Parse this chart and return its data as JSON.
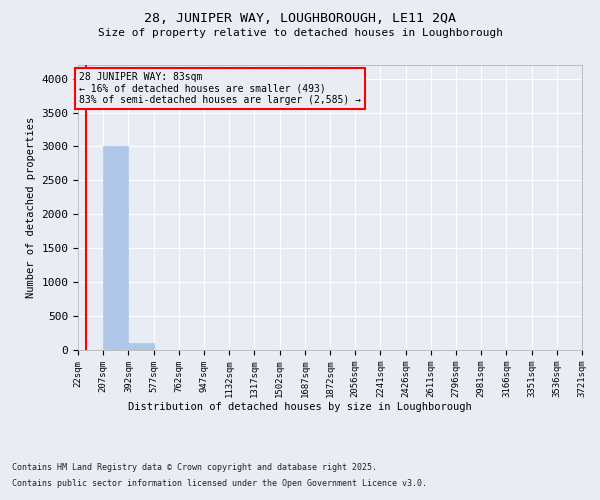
{
  "title1": "28, JUNIPER WAY, LOUGHBOROUGH, LE11 2QA",
  "title2": "Size of property relative to detached houses in Loughborough",
  "xlabel": "Distribution of detached houses by size in Loughborough",
  "ylabel": "Number of detached properties",
  "bar_color": "#aec6e8",
  "bar_edge_color": "#aec6e8",
  "background_color": "#e8edf5",
  "grid_color": "#ffffff",
  "annotation_line_color": "red",
  "annotation_box_color": "red",
  "annotation_text": "28 JUNIPER WAY: 83sqm\n← 16% of detached houses are smaller (493)\n83% of semi-detached houses are larger (2,585) →",
  "property_size": 83,
  "footnote1": "Contains HM Land Registry data © Crown copyright and database right 2025.",
  "footnote2": "Contains public sector information licensed under the Open Government Licence v3.0.",
  "bin_edges": [
    22,
    207,
    392,
    577,
    762,
    947,
    1132,
    1317,
    1502,
    1687,
    1872,
    2056,
    2241,
    2426,
    2611,
    2796,
    2981,
    3166,
    3351,
    3536,
    3721
  ],
  "bin_labels": [
    "22sqm",
    "207sqm",
    "392sqm",
    "577sqm",
    "762sqm",
    "947sqm",
    "1132sqm",
    "1317sqm",
    "1502sqm",
    "1687sqm",
    "1872sqm",
    "2056sqm",
    "2241sqm",
    "2426sqm",
    "2611sqm",
    "2796sqm",
    "2981sqm",
    "3166sqm",
    "3351sqm",
    "3536sqm",
    "3721sqm"
  ],
  "bar_heights": [
    0,
    3000,
    110,
    0,
    0,
    0,
    0,
    0,
    0,
    0,
    0,
    0,
    0,
    0,
    0,
    0,
    0,
    0,
    0,
    0
  ],
  "ylim": [
    0,
    4200
  ],
  "yticks": [
    0,
    500,
    1000,
    1500,
    2000,
    2500,
    3000,
    3500,
    4000
  ]
}
